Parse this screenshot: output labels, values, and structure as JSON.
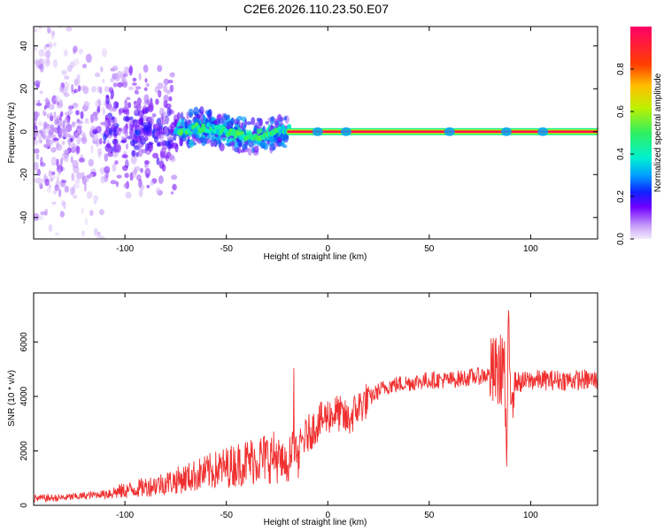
{
  "title": "C2E6.2026.110.23.50.E07",
  "colors": {
    "signal_line": "#f03030",
    "low_amplitude": "#e8d8f8",
    "mid_amplitude": "#7000ff",
    "high_amplitude": "#ff0060"
  },
  "chart_data": [
    {
      "type": "heatmap",
      "xlabel": "Height of straight line (km)",
      "ylabel": "Frequency (Hz)",
      "xlim": [
        -145,
        133
      ],
      "ylim": [
        -50,
        49
      ],
      "xticks": [
        -100,
        -50,
        0,
        50,
        100
      ],
      "yticks": [
        -40,
        -20,
        0,
        20,
        40
      ],
      "colorbar": {
        "label": "Normalized spectral amplitude",
        "range": [
          0,
          1
        ],
        "ticks": [
          "0.0",
          "0.2",
          "0.4",
          "0.6",
          "0.8"
        ]
      },
      "description_regions": [
        {
          "x_range": [
            -145,
            -110
          ],
          "freq_spread_hz": 50,
          "amplitude": 0.15
        },
        {
          "x_range": [
            -110,
            -75
          ],
          "freq_spread_hz": 30,
          "amplitude": 0.2
        },
        {
          "x_range": [
            -75,
            -20
          ],
          "freq_spread_hz": 8,
          "amplitude": 0.4
        },
        {
          "x_range": [
            -20,
            133
          ],
          "freq_spread_hz": 1,
          "amplitude": 0.95
        }
      ]
    },
    {
      "type": "line",
      "xlabel": "Height of straight line (km)",
      "ylabel": "SNR (10 * v/v)",
      "xlim": [
        -145,
        133
      ],
      "ylim": [
        0,
        7800
      ],
      "xticks": [
        -100,
        -50,
        0,
        50,
        100
      ],
      "yticks": [
        0,
        2000,
        4000,
        6000
      ],
      "series": [
        {
          "x": [
            -145,
            -130,
            -115,
            -105,
            -95,
            -85,
            -75,
            -65,
            -55,
            -45,
            -35,
            -25,
            -20,
            -17,
            -15,
            -13,
            -10,
            -5,
            0,
            5,
            10,
            15,
            20,
            25,
            30,
            40,
            50,
            60,
            70,
            75,
            80,
            85,
            87,
            88,
            89,
            90,
            95,
            100,
            110,
            120,
            133
          ],
          "y": [
            250,
            280,
            380,
            480,
            600,
            750,
            900,
            1100,
            1300,
            1500,
            1700,
            1800,
            1300,
            2600,
            1500,
            2300,
            2600,
            3000,
            3300,
            3400,
            3100,
            3600,
            3900,
            4200,
            4400,
            4500,
            4600,
            4600,
            4700,
            4750,
            4800,
            4900,
            5500,
            1200,
            6000,
            4600,
            4500,
            4600,
            4600,
            4600,
            4600
          ]
        }
      ]
    }
  ]
}
